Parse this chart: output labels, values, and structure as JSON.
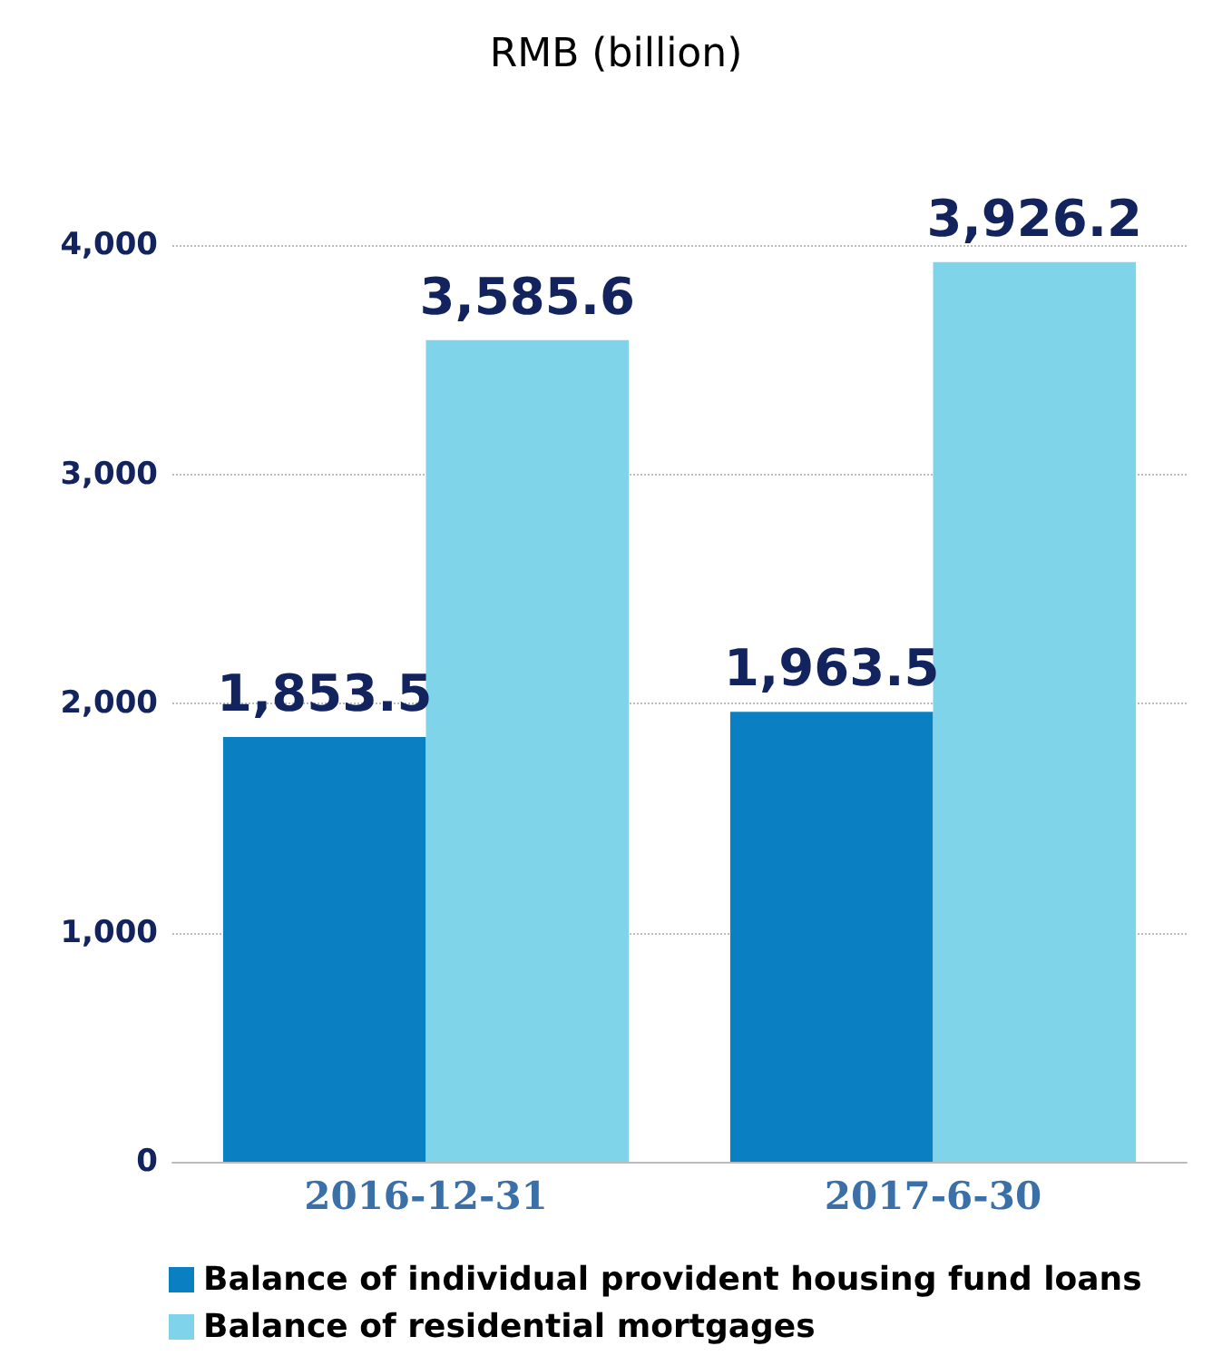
{
  "chart_data": {
    "type": "bar",
    "title": "RMB (billion)",
    "categories": [
      "2016-12-31",
      "2017-6-30"
    ],
    "series": [
      {
        "name": "Balance of individual provident housing fund loans",
        "color": "#0a80c2",
        "values": [
          1853.5,
          1963.5
        ],
        "value_labels": [
          "1,853.5",
          "1,963.5"
        ]
      },
      {
        "name": "Balance of residential mortgages",
        "color": "#80d4ea",
        "values": [
          3585.6,
          3926.2
        ],
        "value_labels": [
          "3,585.6",
          "3,926.2"
        ]
      }
    ],
    "ylim": [
      0,
      4000
    ],
    "yticks": [
      0,
      {
        "value": 1000,
        "label": "1,000"
      },
      {
        "value": 2000,
        "label": "2,000"
      },
      {
        "value": 3000,
        "label": "3,000"
      },
      {
        "value": 4000,
        "label": "4,000"
      }
    ],
    "grid": "y",
    "legend": "bottom left"
  }
}
